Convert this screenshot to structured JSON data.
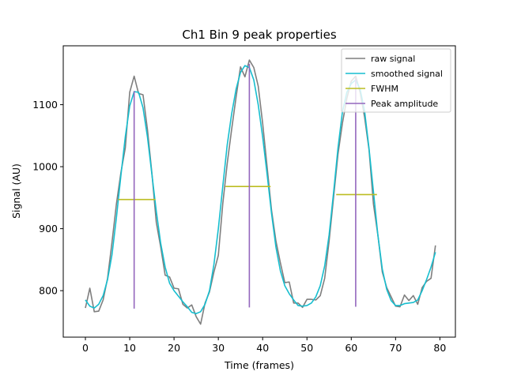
{
  "chart_data": {
    "type": "line",
    "title": "Ch1 Bin 9 peak properties",
    "xlabel": "Time (frames)",
    "ylabel": "Signal (AU)",
    "xlim": [
      -5,
      83.5
    ],
    "ylim": [
      725,
      1195
    ],
    "xticks": [
      0,
      10,
      20,
      30,
      40,
      50,
      60,
      70,
      80
    ],
    "yticks": [
      800,
      900,
      1000,
      1100
    ],
    "grid": false,
    "legend_position": "top-right",
    "colors": {
      "raw": "#7f7f7f",
      "smoothed": "#17becf",
      "fwhm": "#bcbd22",
      "peak": "#9467bd"
    },
    "series": [
      {
        "name": "raw signal",
        "x": [
          0,
          1,
          2,
          3,
          4,
          5,
          6,
          7,
          8,
          9,
          10,
          11,
          12,
          13,
          14,
          15,
          16,
          17,
          18,
          19,
          20,
          21,
          22,
          23,
          24,
          25,
          26,
          27,
          28,
          29,
          30,
          31,
          32,
          33,
          34,
          35,
          36,
          37,
          38,
          39,
          40,
          41,
          42,
          43,
          44,
          45,
          46,
          47,
          48,
          49,
          50,
          51,
          52,
          53,
          54,
          55,
          56,
          57,
          58,
          59,
          60,
          61,
          62,
          63,
          64,
          65,
          66,
          67,
          68,
          69,
          70,
          71,
          72,
          73,
          74,
          75,
          76,
          77,
          78,
          79
        ],
        "y": [
          772,
          804,
          766,
          767,
          785,
          820,
          878,
          940,
          990,
          1030,
          1120,
          1146,
          1118,
          1116,
          1060,
          990,
          910,
          870,
          825,
          822,
          804,
          803,
          778,
          772,
          777,
          758,
          746,
          780,
          798,
          830,
          857,
          940,
          1005,
          1060,
          1112,
          1161,
          1145,
          1172,
          1160,
          1130,
          1070,
          1000,
          930,
          880,
          845,
          813,
          814,
          780,
          780,
          773,
          786,
          786,
          785,
          792,
          820,
          880,
          950,
          1020,
          1070,
          1110,
          1138,
          1146,
          1120,
          1080,
          1028,
          940,
          890,
          830,
          805,
          790,
          775,
          774,
          793,
          784,
          792,
          778,
          805,
          815,
          820,
          873
        ]
      },
      {
        "name": "smoothed signal",
        "x": [
          0,
          1,
          2,
          3,
          4,
          5,
          6,
          7,
          8,
          9,
          10,
          11,
          12,
          13,
          14,
          15,
          16,
          17,
          18,
          19,
          20,
          21,
          22,
          23,
          24,
          25,
          26,
          27,
          28,
          29,
          30,
          31,
          32,
          33,
          34,
          35,
          36,
          37,
          38,
          39,
          40,
          41,
          42,
          43,
          44,
          45,
          46,
          47,
          48,
          49,
          50,
          51,
          52,
          53,
          54,
          55,
          56,
          57,
          58,
          59,
          60,
          61,
          62,
          63,
          64,
          65,
          66,
          67,
          68,
          69,
          70,
          71,
          72,
          73,
          74,
          75,
          76,
          77,
          78,
          79
        ],
        "y": [
          785,
          775,
          772,
          778,
          792,
          818,
          858,
          918,
          985,
          1048,
          1098,
          1121,
          1120,
          1095,
          1048,
          988,
          928,
          876,
          838,
          812,
          800,
          791,
          782,
          774,
          765,
          763,
          766,
          778,
          800,
          842,
          900,
          968,
          1035,
          1085,
          1125,
          1152,
          1163,
          1160,
          1140,
          1100,
          1048,
          988,
          925,
          870,
          832,
          808,
          795,
          785,
          776,
          775,
          776,
          780,
          790,
          808,
          840,
          890,
          958,
          1030,
          1088,
          1120,
          1134,
          1140,
          1125,
          1090,
          1030,
          960,
          890,
          835,
          802,
          784,
          776,
          776,
          779,
          780,
          781,
          785,
          800,
          818,
          838,
          862
        ]
      }
    ],
    "fwhm": [
      {
        "x_start": 7.4,
        "x_end": 15.8,
        "y": 947
      },
      {
        "x_start": 31.6,
        "x_end": 41.8,
        "y": 968
      },
      {
        "x_start": 56.6,
        "x_end": 65.8,
        "y": 955
      }
    ],
    "peaks": [
      {
        "x": 11,
        "y_base": 771,
        "y_top": 1122
      },
      {
        "x": 37,
        "y_base": 773,
        "y_top": 1166
      },
      {
        "x": 61,
        "y_base": 774,
        "y_top": 1143
      }
    ],
    "legend": [
      {
        "label": "raw signal",
        "color": "#7f7f7f"
      },
      {
        "label": "smoothed signal",
        "color": "#17becf"
      },
      {
        "label": "FWHM",
        "color": "#bcbd22"
      },
      {
        "label": "Peak amplitude",
        "color": "#9467bd"
      }
    ]
  }
}
